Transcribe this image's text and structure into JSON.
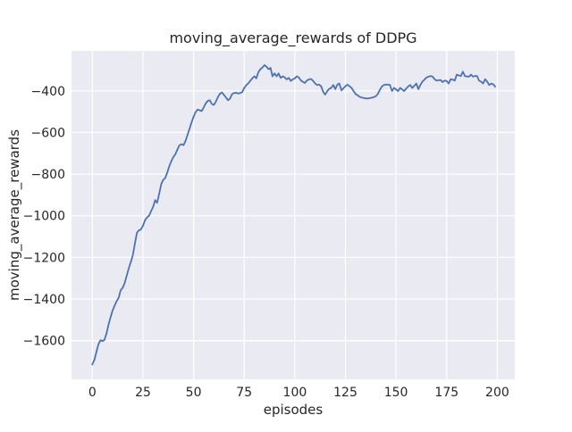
{
  "chart_data": {
    "type": "line",
    "title": "moving_average_rewards of DDPG",
    "xlabel": "episodes",
    "ylabel": "moving_average_rewards",
    "grid": true,
    "legend_position": "none",
    "xlim": [
      -10.3,
      208.65
    ],
    "ylim": [
      -1786,
      -208
    ],
    "xticks": {
      "values": [
        0,
        25,
        50,
        75,
        100,
        125,
        150,
        175,
        200
      ],
      "labels": [
        "0",
        "25",
        "50",
        "75",
        "100",
        "125",
        "150",
        "175",
        "200"
      ]
    },
    "yticks": {
      "values": [
        -400,
        -600,
        -800,
        -1000,
        -1200,
        -1400,
        -1600
      ],
      "labels": [
        "−400",
        "−600",
        "−800",
        "−1000",
        "−1200",
        "−1400",
        "−1600"
      ]
    },
    "style": {
      "figure_bg": "#ffffff",
      "plot_bg": "#eaeaf2",
      "grid_color": "#ffffff",
      "line_color": "#4c72b0",
      "text_color": "#262626"
    },
    "series": [
      {
        "name": "moving_average_rewards",
        "x_start": 0,
        "x_step": 1,
        "values": [
          -1715,
          -1692,
          -1655,
          -1618,
          -1598,
          -1602,
          -1596,
          -1565,
          -1522,
          -1488,
          -1455,
          -1432,
          -1410,
          -1394,
          -1358,
          -1346,
          -1322,
          -1288,
          -1252,
          -1222,
          -1190,
          -1135,
          -1082,
          -1070,
          -1066,
          -1048,
          -1022,
          -1008,
          -1000,
          -978,
          -958,
          -925,
          -938,
          -895,
          -848,
          -828,
          -818,
          -792,
          -762,
          -738,
          -718,
          -705,
          -682,
          -662,
          -656,
          -661,
          -642,
          -612,
          -582,
          -552,
          -524,
          -502,
          -490,
          -493,
          -497,
          -480,
          -460,
          -448,
          -445,
          -463,
          -468,
          -452,
          -430,
          -414,
          -408,
          -420,
          -432,
          -445,
          -437,
          -416,
          -411,
          -409,
          -413,
          -411,
          -406,
          -387,
          -373,
          -364,
          -352,
          -340,
          -330,
          -340,
          -310,
          -296,
          -288,
          -276,
          -284,
          -296,
          -290,
          -330,
          -316,
          -330,
          -316,
          -338,
          -330,
          -335,
          -345,
          -338,
          -352,
          -345,
          -340,
          -330,
          -336,
          -350,
          -357,
          -362,
          -350,
          -345,
          -343,
          -352,
          -364,
          -372,
          -370,
          -378,
          -405,
          -418,
          -402,
          -390,
          -386,
          -372,
          -392,
          -370,
          -365,
          -398,
          -388,
          -378,
          -370,
          -378,
          -386,
          -401,
          -415,
          -421,
          -429,
          -432,
          -434,
          -436,
          -437,
          -435,
          -433,
          -430,
          -426,
          -415,
          -396,
          -379,
          -372,
          -370,
          -370,
          -372,
          -401,
          -386,
          -393,
          -401,
          -386,
          -393,
          -401,
          -389,
          -379,
          -372,
          -386,
          -376,
          -365,
          -392,
          -372,
          -356,
          -346,
          -336,
          -332,
          -329,
          -331,
          -344,
          -351,
          -349,
          -348,
          -358,
          -351,
          -353,
          -365,
          -344,
          -346,
          -351,
          -322,
          -326,
          -329,
          -308,
          -329,
          -331,
          -332,
          -322,
          -332,
          -329,
          -329,
          -351,
          -356,
          -365,
          -344,
          -356,
          -372,
          -365,
          -369,
          -380
        ]
      }
    ]
  }
}
